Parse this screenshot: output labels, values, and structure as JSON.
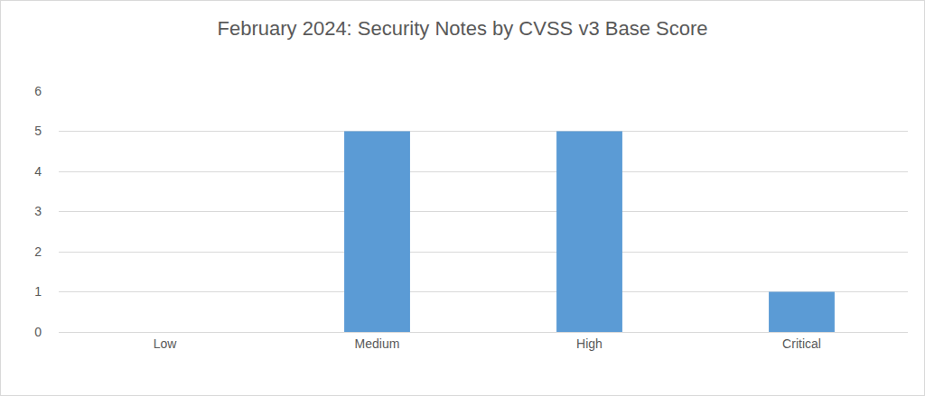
{
  "chart_data": {
    "type": "bar",
    "title": "February 2024: Security Notes by CVSS v3 Base Score",
    "categories": [
      "Low",
      "Medium",
      "High",
      "Critical"
    ],
    "values": [
      0,
      5,
      5,
      1
    ],
    "color": "#5b9bd5",
    "ylim": [
      0,
      6
    ],
    "yticks": [
      0,
      1,
      2,
      3,
      4,
      5,
      6
    ],
    "grid": true
  }
}
